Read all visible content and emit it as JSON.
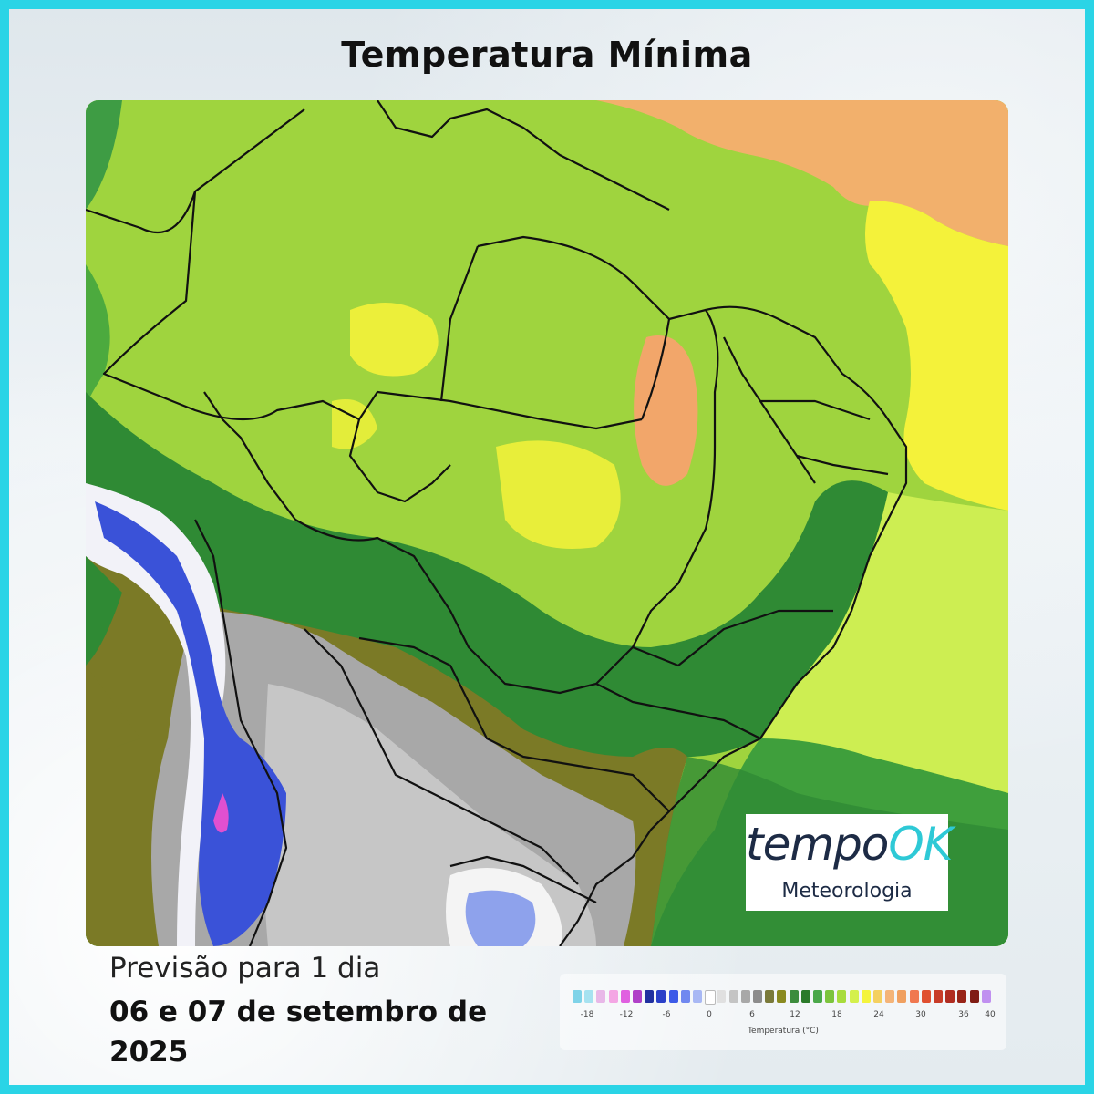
{
  "title": "Temperatura Mínima",
  "logo": {
    "brand_main": "tempo",
    "brand_accent": "OK",
    "subtitle": "Meteorologia"
  },
  "forecast": {
    "label": "Previsão para 1 dia",
    "date": "06 e 07 de setembro de 2025"
  },
  "legend": {
    "title": "Temperatura (°C)",
    "ticks": [
      "-18",
      "-12",
      "-6",
      "0",
      "6",
      "12",
      "18",
      "24",
      "30",
      "36",
      "40"
    ],
    "colors": [
      "#7fd3e8",
      "#a6e2f0",
      "#e8b8e8",
      "#f4a6e4",
      "#e060e0",
      "#b040c8",
      "#2030a0",
      "#2a40c8",
      "#3c5ae8",
      "#7088f0",
      "#a8b8f4",
      "#ffffff",
      "#e0e0e0",
      "#c4c4c4",
      "#a8a8a8",
      "#8c8c8c",
      "#7a7a3a",
      "#8a8a20",
      "#3c8c3c",
      "#2a7a2a",
      "#4aa84a",
      "#7cc43c",
      "#a8dc3c",
      "#d4f04c",
      "#f4f43c",
      "#f4d060",
      "#f4b478",
      "#f0a060",
      "#f07850",
      "#e05030",
      "#c83c28",
      "#b02c20",
      "#982418",
      "#801c14",
      "#c090f0"
    ],
    "colors_scale": "color sequence from coldest to warmest"
  }
}
